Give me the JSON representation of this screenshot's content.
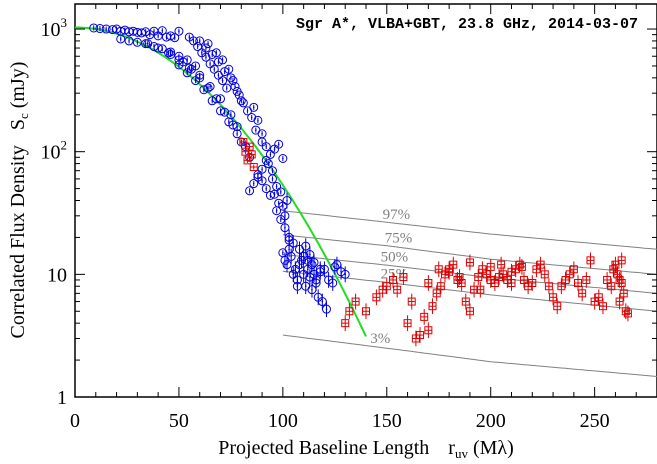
{
  "chart_data": {
    "type": "scatter",
    "title": "Sgr A*, VLBA+GBT, 23.8 GHz, 2014-03-07",
    "xlabel": {
      "main": "Projected Baseline Length",
      "sym": "r",
      "sub": "uv",
      "unit": "(Mλ)"
    },
    "ylabel": {
      "main": "Correlated Flux Density",
      "sym": "S",
      "sub": "c",
      "unit": "(mJy)"
    },
    "xlim": [
      0,
      280
    ],
    "ylim": [
      1,
      1600
    ],
    "yscale": "log",
    "xticks": [
      0,
      50,
      100,
      150,
      200,
      250
    ],
    "xtick_labels": [
      "0",
      "50",
      "100",
      "150",
      "200",
      "250"
    ],
    "ytick_labels": [
      {
        "value": 1,
        "label": "1",
        "exp": ""
      },
      {
        "value": 10,
        "label": "10",
        "exp": ""
      },
      {
        "value": 100,
        "label": "10",
        "exp": "2"
      },
      {
        "value": 1000,
        "label": "10",
        "exp": "3"
      }
    ],
    "colors": {
      "blue": "#0000dd",
      "red": "#dd0000",
      "green": "#22dd22",
      "gray": "#808080"
    },
    "model": {
      "name": "gaussian",
      "amplitude": 1030,
      "sigma": 41.1,
      "color": "#22dd22"
    },
    "reference_curves": [
      {
        "label": "97%",
        "label_x": 148,
        "points": [
          [
            100,
            33
          ],
          [
            150,
            26.6
          ],
          [
            200,
            21.3
          ],
          [
            280,
            16
          ]
        ]
      },
      {
        "label": "75%",
        "label_x": 149,
        "points": [
          [
            100,
            21
          ],
          [
            150,
            17.1
          ],
          [
            200,
            13.3
          ],
          [
            280,
            10
          ]
        ]
      },
      {
        "label": "50%",
        "label_x": 147,
        "points": [
          [
            100,
            14.5
          ],
          [
            150,
            11.9
          ],
          [
            200,
            9.4
          ],
          [
            280,
            7
          ]
        ]
      },
      {
        "label": "25%",
        "label_x": 147,
        "points": [
          [
            100,
            10.6
          ],
          [
            150,
            8.6
          ],
          [
            200,
            6.8
          ],
          [
            280,
            5
          ]
        ]
      },
      {
        "label": "3%",
        "label_x": 142,
        "points": [
          [
            100,
            3.2
          ],
          [
            150,
            2.5
          ],
          [
            200,
            1.94
          ],
          [
            280,
            1.47
          ]
        ]
      }
    ],
    "series": [
      {
        "marker": "circle",
        "color": "#0000dd",
        "points": [
          [
            9,
            1020
          ],
          [
            12,
            1010
          ],
          [
            15,
            1000
          ],
          [
            18,
            990
          ],
          [
            20,
            1000
          ],
          [
            22,
            960
          ],
          [
            24,
            980
          ],
          [
            26,
            950
          ],
          [
            28,
            960
          ],
          [
            30,
            940
          ],
          [
            32,
            930
          ],
          [
            34,
            950
          ],
          [
            36,
            900
          ],
          [
            38,
            960
          ],
          [
            40,
            880
          ],
          [
            42,
            970
          ],
          [
            44,
            860
          ],
          [
            46,
            880
          ],
          [
            48,
            850
          ],
          [
            50,
            960
          ],
          [
            22,
            830
          ],
          [
            26,
            800
          ],
          [
            30,
            780
          ],
          [
            34,
            760
          ],
          [
            38,
            720
          ],
          [
            42,
            690
          ],
          [
            46,
            650
          ],
          [
            50,
            600
          ],
          [
            54,
            560
          ],
          [
            58,
            500
          ],
          [
            35,
            760
          ],
          [
            40,
            700
          ],
          [
            45,
            640
          ],
          [
            50,
            560
          ],
          [
            55,
            480
          ],
          [
            60,
            420
          ],
          [
            65,
            340
          ],
          [
            70,
            270
          ],
          [
            75,
            200
          ],
          [
            78,
            160
          ],
          [
            52,
            540
          ],
          [
            56,
            470
          ],
          [
            60,
            400
          ],
          [
            64,
            330
          ],
          [
            68,
            270
          ],
          [
            72,
            210
          ],
          [
            76,
            165
          ],
          [
            80,
            120
          ],
          [
            84,
            90
          ],
          [
            88,
            65
          ],
          [
            46,
            620
          ],
          [
            50,
            510
          ],
          [
            54,
            440
          ],
          [
            58,
            380
          ],
          [
            62,
            320
          ],
          [
            66,
            260
          ],
          [
            70,
            215
          ],
          [
            74,
            175
          ],
          [
            78,
            140
          ],
          [
            82,
            110
          ],
          [
            55,
            860
          ],
          [
            57,
            800
          ],
          [
            59,
            720
          ],
          [
            61,
            640
          ],
          [
            63,
            590
          ],
          [
            65,
            520
          ],
          [
            67,
            470
          ],
          [
            69,
            420
          ],
          [
            71,
            380
          ],
          [
            73,
            330
          ],
          [
            60,
            800
          ],
          [
            63,
            700
          ],
          [
            66,
            620
          ],
          [
            69,
            540
          ],
          [
            72,
            450
          ],
          [
            75,
            400
          ],
          [
            77,
            340
          ],
          [
            79,
            290
          ],
          [
            81,
            250
          ],
          [
            83,
            215
          ],
          [
            64,
            760
          ],
          [
            68,
            640
          ],
          [
            71,
            560
          ],
          [
            74,
            470
          ],
          [
            76,
            380
          ],
          [
            78,
            310
          ],
          [
            80,
            260
          ],
          [
            85,
            190
          ],
          [
            87,
            150
          ],
          [
            90,
            120
          ],
          [
            86,
            230
          ],
          [
            88,
            180
          ],
          [
            90,
            140
          ],
          [
            92,
            110
          ],
          [
            93,
            80
          ],
          [
            95,
            60
          ],
          [
            96,
            45
          ],
          [
            98,
            38
          ],
          [
            100,
            36
          ],
          [
            102,
            40
          ],
          [
            84,
            48
          ],
          [
            86,
            55
          ],
          [
            88,
            62
          ],
          [
            90,
            58
          ],
          [
            92,
            50
          ],
          [
            94,
            44
          ],
          [
            97,
            33
          ],
          [
            99,
            28
          ],
          [
            101,
            24
          ],
          [
            103,
            20
          ],
          [
            100,
            15
          ],
          [
            101,
            13
          ],
          [
            102,
            12
          ],
          [
            103,
            16
          ],
          [
            104,
            14
          ],
          [
            105,
            10
          ],
          [
            106,
            11
          ],
          [
            107,
            9
          ],
          [
            108,
            12
          ],
          [
            109,
            13
          ],
          [
            110,
            10
          ],
          [
            111,
            8
          ],
          [
            112,
            11
          ],
          [
            113,
            9.5
          ],
          [
            114,
            7.5
          ],
          [
            115,
            10
          ],
          [
            116,
            8.5
          ],
          [
            117,
            6.5
          ],
          [
            118,
            10.5
          ],
          [
            119,
            6
          ],
          [
            105,
            18
          ],
          [
            108,
            16
          ],
          [
            110,
            14
          ],
          [
            112,
            13
          ],
          [
            114,
            12
          ],
          [
            116,
            9
          ],
          [
            120,
            11
          ],
          [
            122,
            9
          ],
          [
            125,
            11.5
          ],
          [
            128,
            10.5
          ],
          [
            103,
            19
          ],
          [
            107,
            8
          ],
          [
            111,
            17
          ],
          [
            113,
            14.5
          ],
          [
            115,
            12.5
          ],
          [
            118,
            11
          ],
          [
            121,
            5.2
          ],
          [
            124,
            8.5
          ],
          [
            126,
            12
          ],
          [
            130,
            10
          ],
          [
            90,
            72
          ],
          [
            92,
            85
          ],
          [
            94,
            95
          ],
          [
            96,
            105
          ],
          [
            98,
            115
          ],
          [
            100,
            88
          ],
          [
            95,
            70
          ],
          [
            97,
            52
          ],
          [
            99,
            47
          ],
          [
            101,
            30
          ]
        ]
      },
      {
        "marker": "square",
        "color": "#dd0000",
        "points": [
          [
            81,
            120
          ],
          [
            82,
            100
          ],
          [
            83,
            85
          ],
          [
            84,
            110
          ],
          [
            85,
            95
          ],
          [
            86,
            75
          ],
          [
            130,
            4
          ],
          [
            132,
            5
          ],
          [
            135,
            6
          ],
          [
            140,
            5
          ],
          [
            145,
            6.5
          ],
          [
            148,
            7.5
          ],
          [
            150,
            8
          ],
          [
            153,
            9
          ],
          [
            155,
            7.5
          ],
          [
            158,
            9.5
          ],
          [
            160,
            4
          ],
          [
            162,
            6
          ],
          [
            164,
            3
          ],
          [
            166,
            3.2
          ],
          [
            168,
            4.5
          ],
          [
            170,
            3.5
          ],
          [
            172,
            5.5
          ],
          [
            174,
            7
          ],
          [
            176,
            8
          ],
          [
            178,
            10
          ],
          [
            180,
            11
          ],
          [
            182,
            12
          ],
          [
            184,
            9
          ],
          [
            186,
            8.5
          ],
          [
            188,
            6
          ],
          [
            190,
            5
          ],
          [
            192,
            7.5
          ],
          [
            194,
            9.5
          ],
          [
            196,
            11
          ],
          [
            198,
            10
          ],
          [
            200,
            9
          ],
          [
            202,
            8.5
          ],
          [
            204,
            9.5
          ],
          [
            206,
            10
          ],
          [
            208,
            9
          ],
          [
            210,
            8.5
          ],
          [
            212,
            11
          ],
          [
            214,
            12
          ],
          [
            216,
            9
          ],
          [
            218,
            8
          ],
          [
            220,
            8.5
          ],
          [
            222,
            11
          ],
          [
            224,
            12
          ],
          [
            226,
            10
          ],
          [
            228,
            8
          ],
          [
            230,
            6.5
          ],
          [
            232,
            5.5
          ],
          [
            234,
            8
          ],
          [
            236,
            9
          ],
          [
            238,
            10
          ],
          [
            240,
            11
          ],
          [
            242,
            8.5
          ],
          [
            244,
            7
          ],
          [
            246,
            9
          ],
          [
            248,
            13
          ],
          [
            250,
            6
          ],
          [
            252,
            6.5
          ],
          [
            254,
            5.5
          ],
          [
            256,
            9
          ],
          [
            258,
            8
          ],
          [
            259,
            11
          ],
          [
            260,
            12
          ],
          [
            261,
            10
          ],
          [
            262,
            9
          ],
          [
            263,
            8.5
          ],
          [
            264,
            7
          ],
          [
            265,
            5
          ],
          [
            266,
            4.8
          ],
          [
            263,
            13
          ],
          [
            262,
            6
          ],
          [
            170,
            8.5
          ],
          [
            175,
            11
          ],
          [
            180,
            10.5
          ],
          [
            185,
            9.5
          ],
          [
            190,
            12.5
          ],
          [
            195,
            7.5
          ],
          [
            200,
            11.5
          ],
          [
            205,
            12
          ],
          [
            210,
            10.5
          ],
          [
            215,
            11.5
          ]
        ]
      }
    ]
  }
}
